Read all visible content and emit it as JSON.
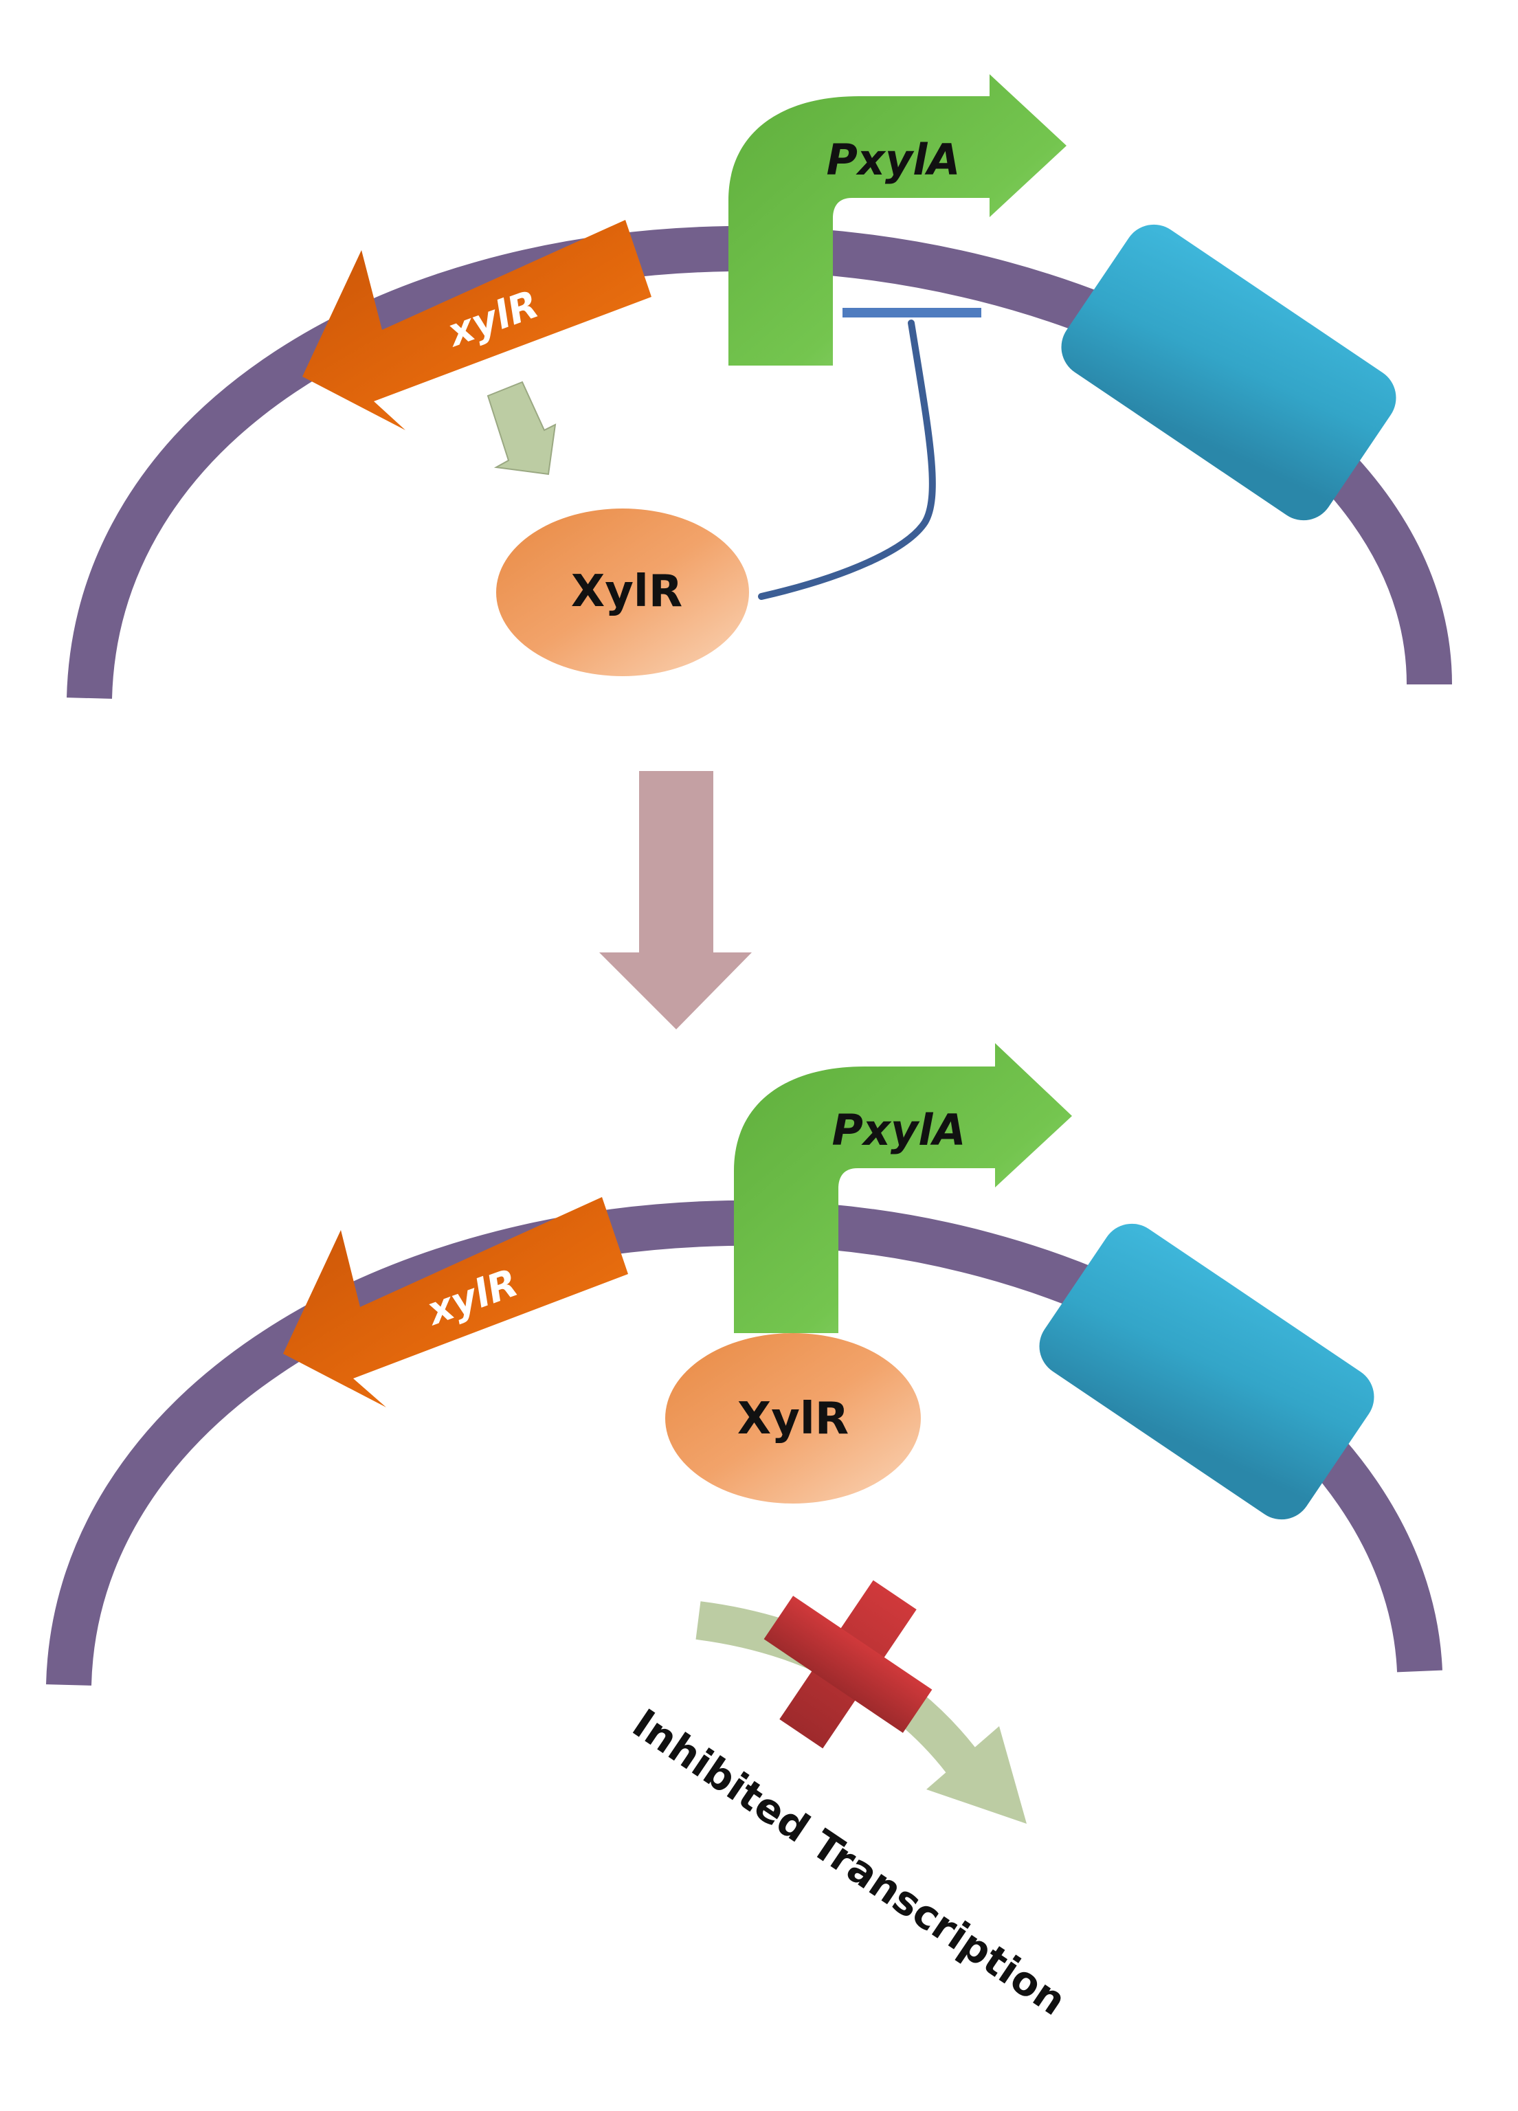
{
  "panels": {
    "top": {
      "gene_label": "xylR",
      "promoter_label": "PxylA",
      "protein_label": "XylR"
    },
    "bottom": {
      "gene_label": "xylR",
      "promoter_label": "PxylA",
      "protein_label": "XylR",
      "outcome_label": "Inhibited Transcription"
    }
  },
  "colors": {
    "dna": "#73608c",
    "gene": "#e0650c",
    "promoter": "#6cbf4a",
    "protein": "#f1a46a",
    "downstream_gene": "#35a9cc",
    "repression_line": "#3c5e95",
    "transition_arrow": "#c4a0a3",
    "expression_arrow": "#bccca3",
    "block_mark": "#c03538"
  }
}
